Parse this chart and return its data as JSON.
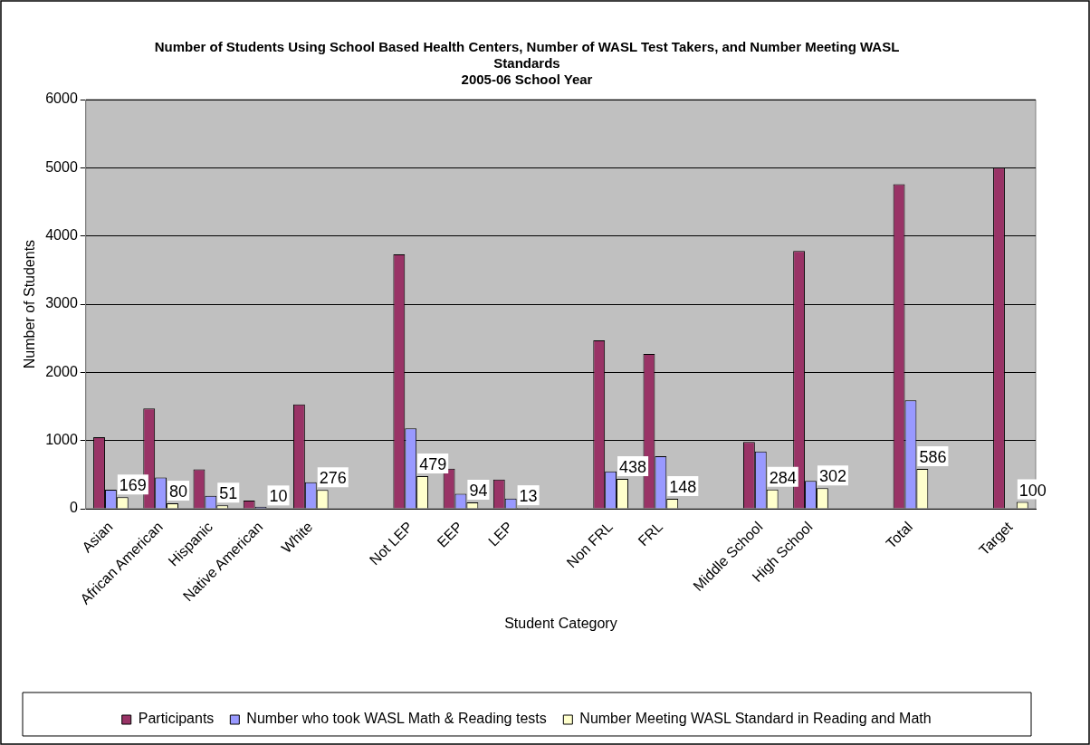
{
  "chart_data": {
    "type": "bar",
    "title": "Number of Students Using School Based Health Centers, Number of WASL Test Takers, and Number Meeting WASL Standards",
    "subtitle": "2005-06 School Year",
    "xlabel": "Student Category",
    "ylabel": "Number of Students",
    "categories": [
      "Asian",
      "African American",
      "Hispanic",
      "Native American",
      "White",
      null,
      "Not LEP",
      "EEP",
      "LEP",
      null,
      "Non FRL",
      "FRL",
      null,
      "Middle School",
      "High School",
      null,
      "Total",
      null,
      "Target"
    ],
    "series": [
      {
        "name": "Participants",
        "color": "#993366",
        "values": [
          1050,
          1470,
          580,
          120,
          1530,
          null,
          3730,
          590,
          430,
          null,
          2470,
          2270,
          null,
          980,
          3780,
          null,
          4760,
          null,
          5000
        ]
      },
      {
        "name": "Number who took WASL Math & Reading tests",
        "color": "#9999ff",
        "values": [
          280,
          460,
          190,
          30,
          390,
          null,
          1180,
          220,
          150,
          null,
          550,
          770,
          null,
          840,
          410,
          null,
          1590,
          null,
          null
        ]
      },
      {
        "name": "Number Meeting WASL Standard in Reading and Math",
        "color": "#ffffcc",
        "values": [
          169,
          80,
          51,
          10,
          276,
          null,
          479,
          94,
          13,
          null,
          438,
          148,
          null,
          284,
          302,
          null,
          586,
          null,
          100
        ],
        "value_labels": [
          "169",
          "80",
          "51",
          "10",
          "276",
          null,
          "479",
          "94",
          "13",
          null,
          "438",
          "148",
          null,
          "284",
          "302",
          null,
          "586",
          null,
          "100"
        ]
      }
    ],
    "ylim": [
      0,
      6000
    ],
    "yticks": [
      0,
      1000,
      2000,
      3000,
      4000,
      5000,
      6000
    ],
    "grid": "y",
    "legend": "bottom"
  }
}
